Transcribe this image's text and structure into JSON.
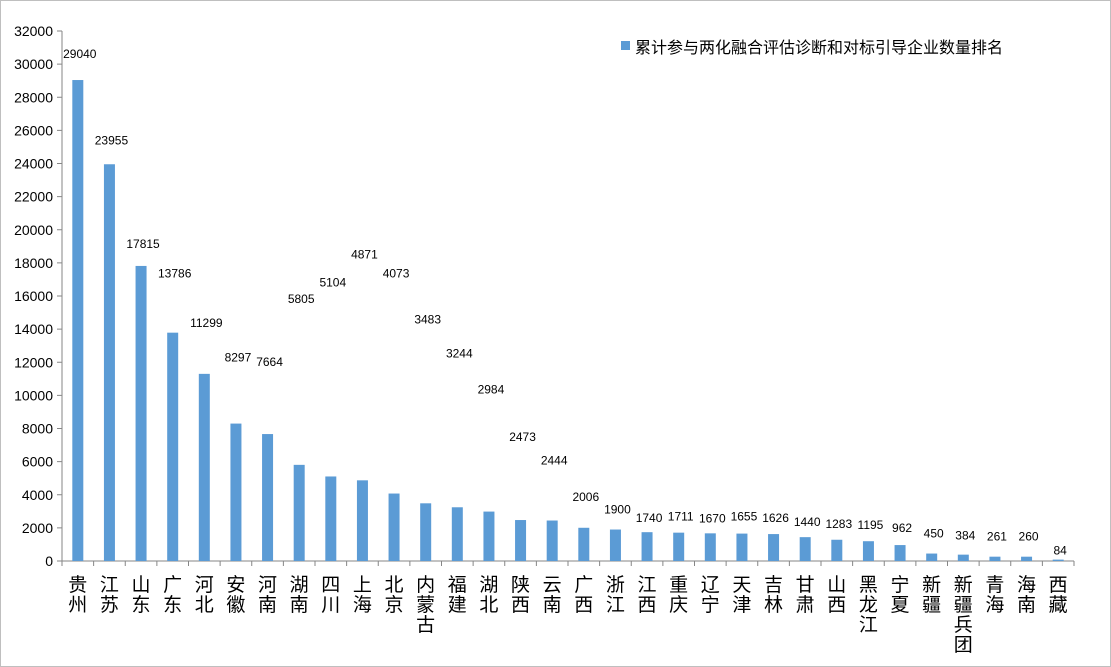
{
  "chart_data": {
    "type": "bar",
    "title": "",
    "xlabel": "",
    "ylabel": "",
    "ylim": [
      0,
      32000
    ],
    "ytick_step": 2000,
    "grid": false,
    "legend_position": "top-right",
    "bar_color": "#5b9bd5",
    "series": [
      {
        "name": "累计参与两化融合评估诊断和对标引导企业数量排名",
        "values": [
          29040,
          23955,
          17815,
          13786,
          11299,
          8297,
          7664,
          5805,
          5104,
          4871,
          4073,
          3483,
          3244,
          2984,
          2473,
          2444,
          2006,
          1900,
          1740,
          1711,
          1670,
          1655,
          1626,
          1440,
          1283,
          1195,
          962,
          450,
          384,
          261,
          260,
          84
        ]
      }
    ],
    "categories": [
      "贵州",
      "江苏",
      "山东",
      "广东",
      "河北",
      "安徽",
      "河南",
      "湖南",
      "四川",
      "上海",
      "北京",
      "内蒙古",
      "福建",
      "湖北",
      "陕西",
      "云南",
      "广西",
      "浙江",
      "江西",
      "重庆",
      "辽宁",
      "天津",
      "吉林",
      "甘肃",
      "山西",
      "黑龙江",
      "宁夏",
      "新疆",
      "新疆兵团",
      "青海",
      "海南",
      "西藏"
    ]
  }
}
